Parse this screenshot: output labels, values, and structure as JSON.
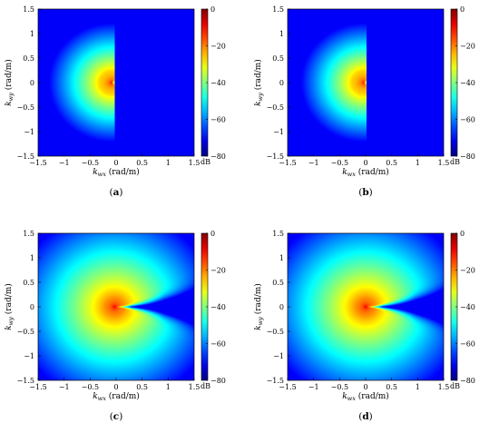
{
  "chart_data": [
    {
      "type": "heatmap",
      "caption": "(a)",
      "source_pos": [
        -0.08,
        0.0
      ],
      "pattern": "half-space",
      "xlabel_var": "k",
      "xlabel_sub": "wx",
      "xlabel_unit": "(rad/m)",
      "ylabel_var": "k",
      "ylabel_sub": "wy",
      "ylabel_unit": "(rad/m)",
      "xlim": [
        -1.5,
        1.5
      ],
      "ylim": [
        -1.5,
        1.5
      ],
      "xticks": [
        "-1.5",
        "-1",
        "-0.5",
        "0",
        "0.5",
        "1",
        "1.5"
      ],
      "yticks": [
        "1.5",
        "1",
        "0.5",
        "0",
        "-0.5",
        "-1",
        "-1.5"
      ],
      "colorbar": {
        "ticks": [
          "0",
          "-20",
          "-40",
          "-60",
          "-80"
        ],
        "unit": "dB",
        "range": [
          -80,
          0
        ]
      }
    },
    {
      "type": "heatmap",
      "caption": "(b)",
      "source_pos": [
        -0.03,
        0.0
      ],
      "pattern": "half-space",
      "xlabel_var": "k",
      "xlabel_sub": "wx",
      "xlabel_unit": "(rad/m)",
      "ylabel_var": "k",
      "ylabel_sub": "wy",
      "ylabel_unit": "(rad/m)",
      "xlim": [
        -1.5,
        1.5
      ],
      "ylim": [
        -1.5,
        1.5
      ],
      "xticks": [
        "-1.5",
        "-1",
        "-0.5",
        "0",
        "0.5",
        "1",
        "1.5"
      ],
      "yticks": [
        "1.5",
        "1",
        "0.5",
        "0",
        "-0.5",
        "-1",
        "-1.5"
      ],
      "colorbar": {
        "ticks": [
          "0",
          "-20",
          "-40",
          "-60",
          "-80"
        ],
        "unit": "dB",
        "range": [
          -80,
          0
        ]
      }
    },
    {
      "type": "heatmap",
      "caption": "(c)",
      "source_pos": [
        -0.03,
        0.0
      ],
      "pattern": "wake",
      "xlabel_var": "k",
      "xlabel_sub": "wx",
      "xlabel_unit": "(rad/m)",
      "ylabel_var": "k",
      "ylabel_sub": "wy",
      "ylabel_unit": "(rad/m)",
      "xlim": [
        -1.5,
        1.5
      ],
      "ylim": [
        -1.5,
        1.5
      ],
      "xticks": [
        "-1.5",
        "-1",
        "-0.5",
        "0",
        "0.5",
        "1",
        "1.5"
      ],
      "yticks": [
        "1.5",
        "1",
        "0.5",
        "0",
        "-0.5",
        "-1",
        "-1.5"
      ],
      "colorbar": {
        "ticks": [
          "0",
          "-20",
          "-40",
          "-60",
          "-80"
        ],
        "unit": "dB",
        "range": [
          -80,
          0
        ]
      }
    },
    {
      "type": "heatmap",
      "caption": "(d)",
      "source_pos": [
        0.0,
        0.0
      ],
      "pattern": "wake",
      "xlabel_var": "k",
      "xlabel_sub": "wx",
      "xlabel_unit": "(rad/m)",
      "ylabel_var": "k",
      "ylabel_sub": "wy",
      "ylabel_unit": "(rad/m)",
      "xlim": [
        -1.5,
        1.5
      ],
      "ylim": [
        -1.5,
        1.5
      ],
      "xticks": [
        "-1.5",
        "-1",
        "-0.5",
        "0",
        "0.5",
        "1",
        "1.5"
      ],
      "yticks": [
        "1.5",
        "1",
        "0.5",
        "0",
        "-0.5",
        "-1",
        "-1.5"
      ],
      "colorbar": {
        "ticks": [
          "0",
          "-20",
          "-40",
          "-60",
          "-80"
        ],
        "unit": "dB",
        "range": [
          -80,
          0
        ]
      }
    }
  ]
}
